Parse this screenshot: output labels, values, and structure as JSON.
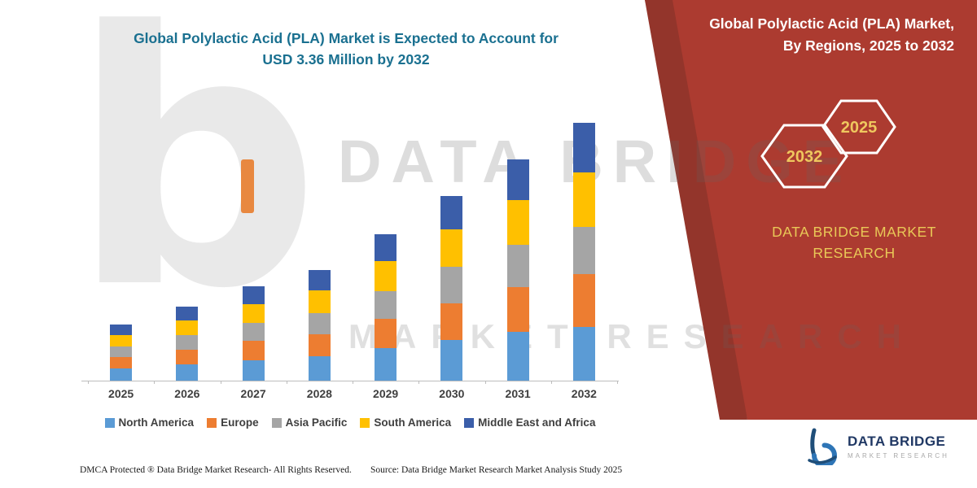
{
  "header": {
    "title_line1": "Global Polylactic Acid (PLA) Market is Expected to Account for",
    "title_line2": "USD 3.36 Million by 2032"
  },
  "chart_data": {
    "type": "bar",
    "stacked": true,
    "title": "Global Polylactic Acid (PLA) Market is Expected to Account for USD 3.36 Million by 2032",
    "categories": [
      "2025",
      "2026",
      "2027",
      "2028",
      "2029",
      "2030",
      "2031",
      "2032"
    ],
    "series": [
      {
        "name": "North America",
        "color": "#5B9BD5",
        "values": [
          0.16,
          0.21,
          0.27,
          0.32,
          0.43,
          0.53,
          0.64,
          0.7
        ]
      },
      {
        "name": "Europe",
        "color": "#ED7D31",
        "values": [
          0.15,
          0.19,
          0.25,
          0.29,
          0.38,
          0.48,
          0.58,
          0.69
        ]
      },
      {
        "name": "Asia Pacific",
        "color": "#A5A5A5",
        "values": [
          0.14,
          0.19,
          0.23,
          0.27,
          0.36,
          0.47,
          0.55,
          0.61
        ]
      },
      {
        "name": "South America",
        "color": "#FFC000",
        "values": [
          0.15,
          0.2,
          0.25,
          0.3,
          0.39,
          0.49,
          0.59,
          0.72
        ]
      },
      {
        "name": "Middle East and Africa",
        "color": "#3B5EA9",
        "values": [
          0.13,
          0.18,
          0.23,
          0.26,
          0.35,
          0.44,
          0.53,
          0.64
        ]
      }
    ],
    "totals": [
      0.73,
      0.97,
      1.23,
      1.44,
      1.91,
      2.41,
      2.89,
      3.36
    ],
    "value_unit": "USD Million",
    "xlabel": "",
    "ylabel": "",
    "ylim": [
      0,
      3.5
    ],
    "grid": false,
    "legend_position": "bottom"
  },
  "side_panel": {
    "title_line1": "Global Polylactic Acid (PLA) Market,",
    "title_line2": "By Regions, 2025 to 2032",
    "hexagons": [
      {
        "label": "2032"
      },
      {
        "label": "2025"
      }
    ],
    "brand_line1": "DATA BRIDGE MARKET",
    "brand_line2": "RESEARCH",
    "panel_color": "#AC3B30",
    "panel_stripe_color": "#93352B",
    "accent_text_color": "#E9C857"
  },
  "watermark": {
    "line1": "DATA BRIDGE",
    "line2": "MARKET RESEARCH"
  },
  "footer": {
    "left": "DMCA Protected ® Data Bridge Market Research-  All Rights Reserved.",
    "source": "Source: Data Bridge Market Research  Market Analysis Study 2025"
  },
  "logo": {
    "name": "DATA BRIDGE",
    "tagline": "MARKET RESEARCH"
  }
}
